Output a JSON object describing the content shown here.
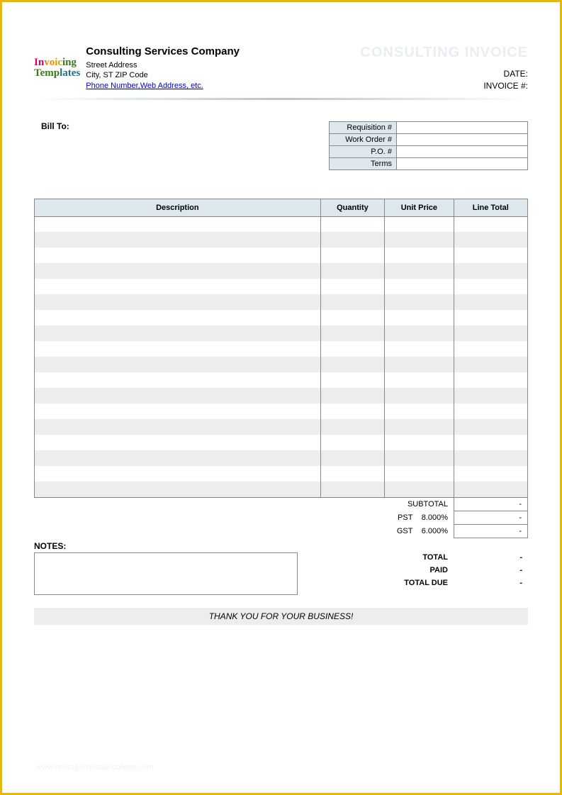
{
  "colors": {
    "page_border": "#e6b800",
    "header_bg": "#dce8ec",
    "stripe_bg": "#ededed",
    "cell_border": "#888888",
    "title_ghost": "#e8eef2",
    "link": "#0000cc",
    "logo_palette": [
      "#d1006b",
      "#e68a00",
      "#c9a600",
      "#3a7a1f",
      "#3a7a1f",
      "#1f6e8c"
    ]
  },
  "logo": {
    "word1": "Invoicing",
    "word2": "Templates"
  },
  "company": {
    "name": "Consulting Services Company",
    "street": "Street Address",
    "city_line": "City, ST  ZIP Code",
    "contact_link": "Phone Number,Web Address, etc."
  },
  "invoice_title": "CONSULTING INVOICE",
  "meta": {
    "date_label": "DATE:",
    "invoice_no_label": "INVOICE #:"
  },
  "bill_to_label": "Bill To:",
  "ref": {
    "requisition": "Requisition #",
    "work_order": "Work Order #",
    "po": "P.O. #",
    "terms": "Terms"
  },
  "items": {
    "columns": {
      "description": "Description",
      "quantity": "Quantity",
      "unit_price": "Unit Price",
      "line_total": "Line Total"
    },
    "row_count": 18,
    "stripe_color": "#ededed",
    "column_widths_pct": [
      58,
      13,
      14,
      15
    ]
  },
  "summary": {
    "subtotal_label": "SUBTOTAL",
    "subtotal_value": "-",
    "pst_label": "PST",
    "pst_rate": "8.000%",
    "pst_value": "-",
    "gst_label": "GST",
    "gst_rate": "6.000%",
    "gst_value": "-",
    "total_label": "TOTAL",
    "total_value": "-",
    "paid_label": "PAID",
    "paid_value": "-",
    "total_due_label": "TOTAL DUE",
    "total_due_value": "-"
  },
  "notes_label": "NOTES:",
  "thanks": "THANK YOU FOR YOUR BUSINESS!",
  "watermark": "www.heritagechristiancollege.com"
}
